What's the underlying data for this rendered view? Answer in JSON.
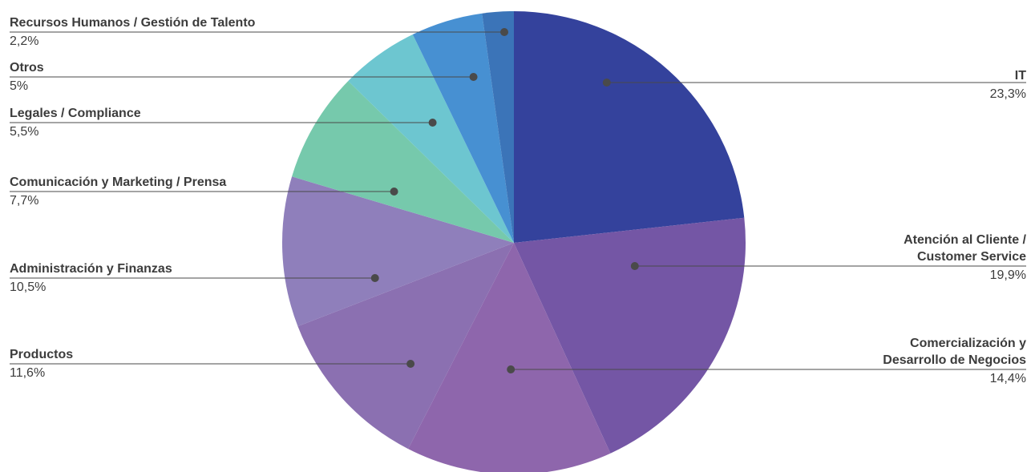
{
  "chart_data": {
    "type": "pie",
    "slices": [
      {
        "label": "IT",
        "value": 23.3,
        "value_text": "23,3%",
        "color": "#34429c"
      },
      {
        "label": "Atención al Cliente /\nCustomer Service",
        "value": 19.9,
        "value_text": "19,9%",
        "color": "#7456a5"
      },
      {
        "label": "Comercialización y\nDesarrollo de Negocios",
        "value": 14.4,
        "value_text": "14,4%",
        "color": "#8e66ac"
      },
      {
        "label": "Productos",
        "value": 11.6,
        "value_text": "11,6%",
        "color": "#8b70b1"
      },
      {
        "label": "Administración y Finanzas",
        "value": 10.5,
        "value_text": "10,5%",
        "color": "#8f7fbb"
      },
      {
        "label": "Comunicación y Marketing / Prensa",
        "value": 7.7,
        "value_text": "7,7%",
        "color": "#76c9ac"
      },
      {
        "label": "Legales / Compliance",
        "value": 5.5,
        "value_text": "5,5%",
        "color": "#6dc6d0"
      },
      {
        "label": "Otros",
        "value": 5,
        "value_text": "5%",
        "color": "#4790d2"
      },
      {
        "label": "Recursos Humanos / Gestión de Talento",
        "value": 2.2,
        "value_text": "2,2%",
        "color": "#3b74b8"
      }
    ]
  }
}
